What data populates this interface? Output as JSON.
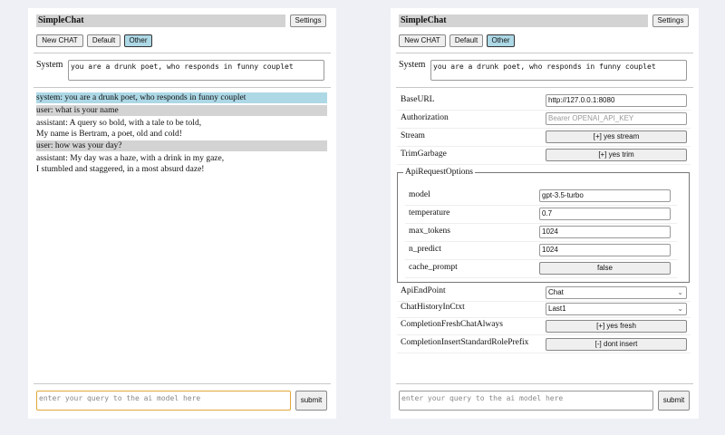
{
  "app": {
    "title": "SimpleChat",
    "settings_label": "Settings",
    "buttons": [
      "New CHAT",
      "Default",
      "Other"
    ],
    "selected": "Other"
  },
  "system": {
    "label": "System",
    "value": "you are a drunk poet, who responds in funny couplet"
  },
  "chat": {
    "messages": [
      {
        "role": "system",
        "lines": [
          "system: you are a drunk poet, who responds in funny couplet"
        ]
      },
      {
        "role": "user",
        "lines": [
          "user: what is your name"
        ]
      },
      {
        "role": "assistant",
        "lines": [
          "assistant: A query so bold, with a tale to be told,",
          "My name is Bertram, a poet, old and cold!"
        ]
      },
      {
        "role": "user",
        "lines": [
          "user: how was your day?"
        ]
      },
      {
        "role": "assistant",
        "lines": [
          "assistant: My day was a haze, with a drink in my gaze,",
          "I stumbled and staggered, in a most absurd daze!"
        ]
      }
    ]
  },
  "query": {
    "placeholder": "enter your query to the ai model here",
    "submit_label": "submit"
  },
  "settings": {
    "base_url": {
      "label": "BaseURL",
      "value": "http://127.0.0.1:8080"
    },
    "authorization": {
      "label": "Authorization",
      "placeholder": "Bearer OPENAI_API_KEY"
    },
    "stream": {
      "label": "Stream",
      "value": "[+] yes stream"
    },
    "trim_garbage": {
      "label": "TrimGarbage",
      "value": "[+] yes trim"
    },
    "api_request_options": {
      "legend": "ApiRequestOptions",
      "model": {
        "label": "model",
        "value": "gpt-3.5-turbo"
      },
      "temperature": {
        "label": "temperature",
        "value": "0.7"
      },
      "max_tokens": {
        "label": "max_tokens",
        "value": "1024"
      },
      "n_predict": {
        "label": "n_predict",
        "value": "1024"
      },
      "cache_prompt": {
        "label": "cache_prompt",
        "value": "false"
      }
    },
    "api_endpoint": {
      "label": "ApiEndPoint",
      "value": "Chat"
    },
    "chat_history": {
      "label": "ChatHistoryInCtxt",
      "value": "Last1"
    },
    "fresh_chat": {
      "label": "CompletionFreshChatAlways",
      "value": "[+] yes fresh"
    },
    "insert_prefix": {
      "label": "CompletionInsertStandardRolePrefix",
      "value": "[-] dont insert"
    }
  },
  "colors": {
    "system_msg": "#add8e6",
    "user_msg": "#d3d3d3",
    "focus_border": "#e0a83a"
  }
}
